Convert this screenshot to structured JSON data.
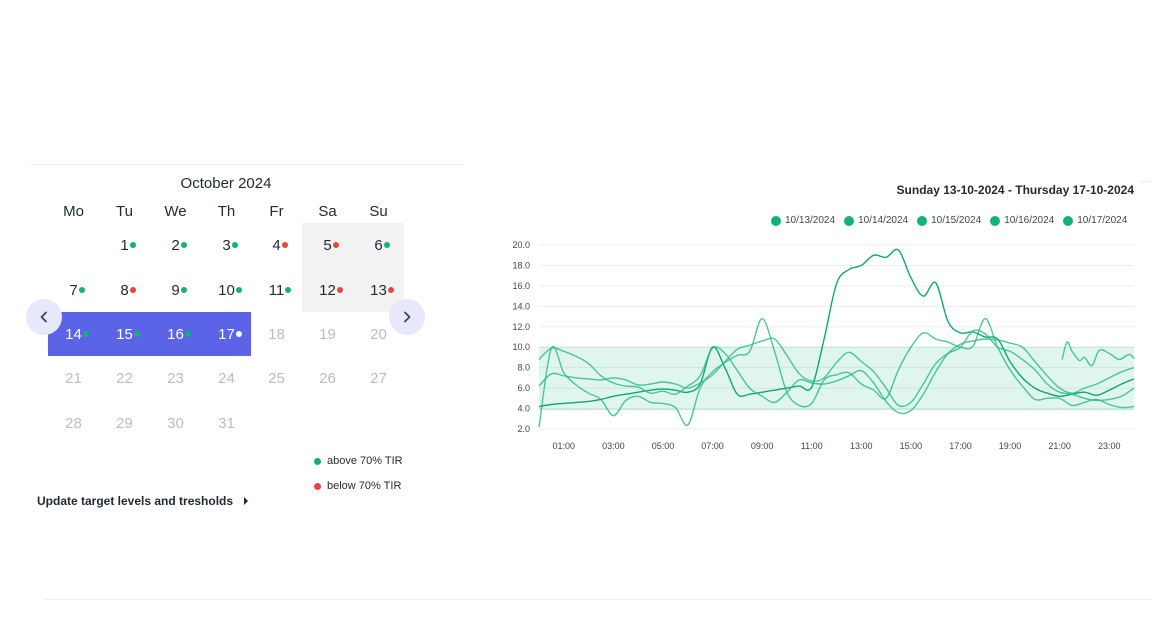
{
  "calendar": {
    "month_title": "October 2024",
    "weekdays": [
      "Mo",
      "Tu",
      "We",
      "Th",
      "Fr",
      "Sa",
      "Su"
    ],
    "rows": [
      [
        null,
        {
          "day": "1",
          "status": "above"
        },
        {
          "day": "2",
          "status": "above"
        },
        {
          "day": "3",
          "status": "above"
        },
        {
          "day": "4",
          "status": "below"
        },
        {
          "day": "5",
          "status": "below",
          "highlight": "weekend"
        },
        {
          "day": "6",
          "status": "above",
          "highlight": "weekend"
        }
      ],
      [
        {
          "day": "7",
          "status": "above"
        },
        {
          "day": "8",
          "status": "below"
        },
        {
          "day": "9",
          "status": "above"
        },
        {
          "day": "10",
          "status": "above"
        },
        {
          "day": "11",
          "status": "above"
        },
        {
          "day": "12",
          "status": "below",
          "highlight": "weekend"
        },
        {
          "day": "13",
          "status": "below",
          "highlight": "weekend"
        }
      ],
      [
        {
          "day": "14",
          "status": "above",
          "selected": true
        },
        {
          "day": "15",
          "status": "above",
          "selected": true
        },
        {
          "day": "16",
          "status": "above",
          "selected": true
        },
        {
          "day": "17",
          "status": "today",
          "selected": true
        },
        {
          "day": "18",
          "muted": true
        },
        {
          "day": "19",
          "muted": true
        },
        {
          "day": "20",
          "muted": true
        }
      ],
      [
        {
          "day": "21",
          "muted": true
        },
        {
          "day": "22",
          "muted": true
        },
        {
          "day": "23",
          "muted": true
        },
        {
          "day": "24",
          "muted": true
        },
        {
          "day": "25",
          "muted": true
        },
        {
          "day": "26",
          "muted": true
        },
        {
          "day": "27",
          "muted": true
        }
      ],
      [
        {
          "day": "28",
          "muted": true
        },
        {
          "day": "29",
          "muted": true
        },
        {
          "day": "30",
          "muted": true
        },
        {
          "day": "31",
          "muted": true
        },
        null,
        null,
        null
      ]
    ],
    "prev_icon": "chevron-left-icon",
    "next_icon": "chevron-right-icon",
    "legend": [
      {
        "label": "above 70% TIR",
        "color": "#13b07a"
      },
      {
        "label": "below 70% TIR",
        "color": "#e8453c"
      }
    ],
    "update_link": "Update target levels and tresholds",
    "colors": {
      "above": "#13b07a",
      "below": "#e8453c",
      "today": "#ffffff",
      "selected_bg": "#5b63e6",
      "weekend_bg": "#f2f2f3",
      "nav_bg": "#e7e8fb"
    }
  },
  "chart": {
    "title": "Sunday 13-10-2024 - Thursday 17-10-2024",
    "legend": [
      "10/13/2024",
      "10/14/2024",
      "10/15/2024",
      "10/16/2024",
      "10/17/2024"
    ],
    "legend_color": "#13b07a"
  },
  "chart_data": {
    "type": "line",
    "title": "Sunday 13-10-2024 - Thursday 17-10-2024",
    "xlabel": "",
    "ylabel": "",
    "x_ticks": [
      "01:00",
      "03:00",
      "05:00",
      "07:00",
      "09:00",
      "11:00",
      "13:00",
      "15:00",
      "17:00",
      "19:00",
      "21:00",
      "23:00"
    ],
    "y_ticks": [
      "20.0",
      "18.0",
      "16.0",
      "14.0",
      "12.0",
      "10.0",
      "8.0",
      "6.0",
      "4.0",
      "2.0"
    ],
    "xlim": [
      0,
      24
    ],
    "ylim": [
      2,
      20
    ],
    "target_band": [
      3.9,
      10
    ],
    "grid": true,
    "legend_position": "top-right",
    "series_color": "#13b07a",
    "series": [
      {
        "name": "10/13/2024",
        "x": [
          0,
          0.5,
          1,
          1.5,
          2,
          2.5,
          3,
          3.5,
          4,
          4.5,
          5,
          5.5,
          6,
          6.5,
          7,
          7.5,
          8,
          8.5,
          9,
          9.5,
          10,
          10.5,
          11,
          11.5,
          12,
          12.5,
          13,
          13.5,
          14,
          14.5,
          15,
          15.5,
          16,
          16.5,
          17,
          17.5,
          18,
          18.5,
          19,
          19.5,
          20,
          20.5,
          21,
          21.5,
          22,
          22.5,
          23,
          23.5,
          24
        ],
        "y": [
          2.2,
          9.9,
          7.5,
          6.3,
          5.5,
          4.9,
          3.3,
          4.8,
          5.2,
          4.6,
          4.5,
          4.1,
          2.4,
          6.0,
          7.6,
          8.5,
          9.2,
          9.6,
          12.8,
          9.6,
          5.6,
          4.3,
          4.5,
          6.8,
          7.3,
          7.5,
          6.4,
          5.8,
          5.0,
          7.8,
          10.0,
          11.4,
          10.8,
          10.5,
          10.0,
          10.1,
          12.8,
          10.0,
          7.8,
          6.2,
          4.9,
          5.0,
          5.0,
          4.3,
          4.6,
          4.9,
          4.4,
          4.1,
          4.2
        ]
      },
      {
        "name": "10/14/2024",
        "x": [
          0,
          0.5,
          1,
          1.5,
          2,
          2.5,
          3,
          3.5,
          4,
          4.5,
          5,
          5.5,
          6,
          6.5,
          7,
          7.5,
          8,
          8.5,
          9,
          9.5,
          10,
          10.5,
          11,
          11.5,
          12,
          12.5,
          13,
          13.5,
          14,
          14.5,
          15,
          15.5,
          16,
          16.5,
          17,
          17.5,
          18,
          18.5,
          19,
          19.5,
          20,
          20.5,
          21,
          21.5,
          22,
          22.5,
          23,
          23.5,
          24
        ],
        "y": [
          4.2,
          4.4,
          4.5,
          4.6,
          4.7,
          4.9,
          5.2,
          5.4,
          5.6,
          5.8,
          5.9,
          5.8,
          5.6,
          6.4,
          10.0,
          8.0,
          5.4,
          5.4,
          5.6,
          5.8,
          6.0,
          6.2,
          6.1,
          10.8,
          16.2,
          17.6,
          18.0,
          19.0,
          18.8,
          19.5,
          16.8,
          15.0,
          16.3,
          12.5,
          11.4,
          11.5,
          11.0,
          10.8,
          8.6,
          7.0,
          6.0,
          5.5,
          5.2,
          5.4,
          5.6,
          5.3,
          5.8,
          6.4,
          6.9
        ]
      },
      {
        "name": "10/15/2024",
        "x": [
          0,
          0.5,
          1,
          1.5,
          2,
          2.5,
          3,
          3.5,
          4,
          4.5,
          5,
          5.5,
          6,
          6.5,
          7,
          7.5,
          8,
          8.5,
          9,
          9.5,
          10,
          10.5,
          11,
          11.5,
          12,
          12.5,
          13,
          13.5,
          14,
          14.5,
          15,
          15.5,
          16,
          16.5,
          17,
          17.5,
          18,
          18.5,
          19,
          19.5,
          20,
          20.5,
          21,
          21.5,
          22,
          22.5,
          23,
          23.5,
          24
        ],
        "y": [
          6.2,
          7.4,
          7.2,
          7.0,
          6.9,
          6.8,
          7.0,
          6.8,
          6.3,
          6.4,
          6.6,
          6.4,
          6.0,
          6.5,
          7.3,
          8.6,
          9.8,
          10.2,
          10.6,
          10.8,
          9.2,
          7.4,
          6.7,
          7.0,
          8.5,
          9.5,
          8.6,
          7.6,
          6.0,
          4.3,
          4.6,
          6.4,
          8.4,
          9.4,
          10.0,
          11.6,
          11.3,
          10.0,
          9.6,
          8.8,
          7.8,
          6.4,
          5.6,
          5.4,
          5.0,
          4.8,
          4.9,
          5.2,
          6.0
        ]
      },
      {
        "name": "10/16/2024",
        "x": [
          0,
          0.5,
          1,
          1.5,
          2,
          2.5,
          3,
          3.5,
          4,
          4.5,
          5,
          5.5,
          6,
          6.5,
          7,
          7.5,
          8,
          8.5,
          9,
          9.5,
          10,
          10.5,
          11,
          11.5,
          12,
          12.5,
          13,
          13.5,
          14,
          14.5,
          15,
          15.5,
          16,
          16.5,
          17,
          17.5,
          18,
          18.5,
          19,
          19.5,
          20,
          20.5,
          21,
          21.5,
          22,
          22.5,
          23,
          23.5,
          24
        ],
        "y": [
          8.8,
          9.9,
          9.6,
          9.1,
          8.4,
          7.2,
          6.5,
          6.2,
          6.1,
          5.5,
          5.7,
          5.4,
          6.2,
          7.2,
          9.9,
          9.4,
          7.7,
          6.0,
          5.2,
          4.6,
          5.6,
          6.8,
          6.5,
          6.4,
          6.7,
          7.2,
          7.7,
          6.5,
          4.7,
          3.6,
          3.8,
          5.4,
          7.6,
          9.4,
          10.3,
          10.6,
          10.8,
          10.7,
          10.4,
          10.0,
          8.6,
          7.2,
          6.0,
          5.5,
          6.0,
          6.4,
          7.0,
          7.6,
          8.0
        ]
      },
      {
        "name": "10/17/2024",
        "x": [
          21.1,
          21.3,
          21.5,
          21.8,
          22.0,
          22.3,
          22.6,
          23.0,
          23.4,
          23.8,
          24
        ],
        "y": [
          8.8,
          10.5,
          9.6,
          8.7,
          9.0,
          8.2,
          9.7,
          9.4,
          8.8,
          9.3,
          8.9
        ]
      }
    ]
  }
}
